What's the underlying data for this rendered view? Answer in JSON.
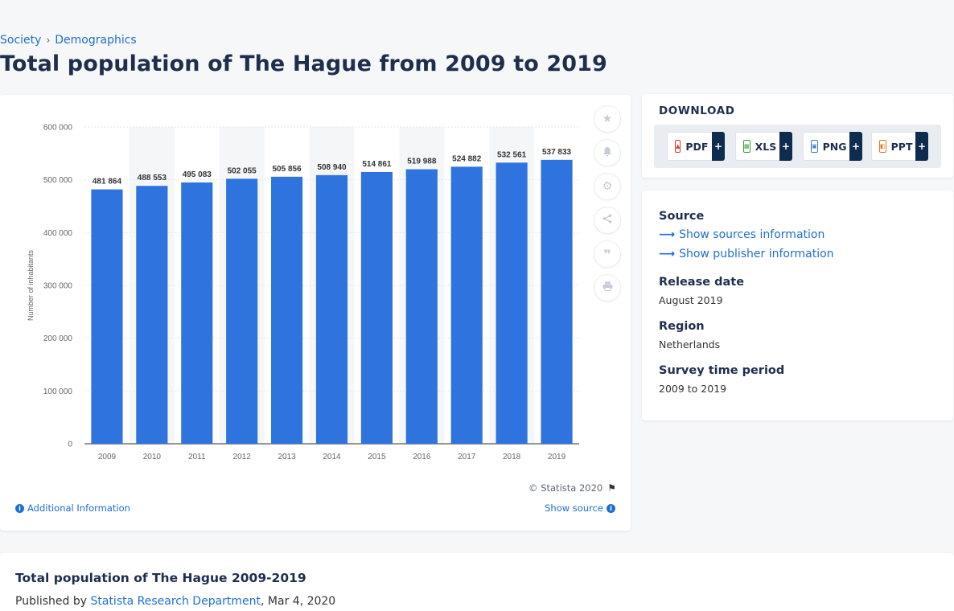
{
  "breadcrumb": {
    "item1": "Society",
    "separator": "›",
    "item2": "Demographics"
  },
  "page": {
    "title": "Total population of The Hague from 2009 to 2019"
  },
  "chart": {
    "copyright": "© Statista 2020",
    "additional_info": "Additional Information",
    "show_source": "Show source",
    "tool_icons": [
      "star-icon",
      "bell-icon",
      "gear-icon",
      "share-icon",
      "quote-icon",
      "print-icon"
    ]
  },
  "chart_data": {
    "type": "bar",
    "categories": [
      "2009",
      "2010",
      "2011",
      "2012",
      "2013",
      "2014",
      "2015",
      "2016",
      "2017",
      "2018",
      "2019"
    ],
    "values": [
      481864,
      488553,
      495083,
      502055,
      505856,
      508940,
      514861,
      519988,
      524882,
      532561,
      537833
    ],
    "value_labels": [
      "481 864",
      "488 553",
      "495 083",
      "502 055",
      "505 856",
      "508 940",
      "514 861",
      "519 988",
      "524 882",
      "532 561",
      "537 833"
    ],
    "ylabel": "Number of inhabitants",
    "ylim": [
      0,
      600000
    ],
    "yticks": [
      0,
      100000,
      200000,
      300000,
      400000,
      500000,
      600000
    ],
    "ytick_labels": [
      "0",
      "100 000",
      "200 000",
      "300 000",
      "400 000",
      "500 000",
      "600 000"
    ],
    "bar_color": "#2f74de",
    "grid": true
  },
  "download": {
    "title": "DOWNLOAD",
    "buttons": [
      {
        "label": "PDF",
        "icon": "pdf-file-icon",
        "color": "#d9382c"
      },
      {
        "label": "XLS",
        "icon": "xls-file-icon",
        "color": "#3f9b3a"
      },
      {
        "label": "PNG",
        "icon": "png-file-icon",
        "color": "#3c7bd6"
      },
      {
        "label": "PPT",
        "icon": "ppt-file-icon",
        "color": "#e07a1f"
      }
    ],
    "plus": "+"
  },
  "info": {
    "source_label": "Source",
    "show_sources": "Show sources information",
    "show_publisher": "Show publisher information",
    "release_label": "Release date",
    "release_value": "August 2019",
    "region_label": "Region",
    "region_value": "Netherlands",
    "period_label": "Survey time period",
    "period_value": "2009 to 2019"
  },
  "bottom": {
    "title": "Total population of The Hague 2009-2019",
    "published_by": "Published by",
    "publisher": "Statista Research Department",
    "date": ", Mar 4, 2020"
  }
}
